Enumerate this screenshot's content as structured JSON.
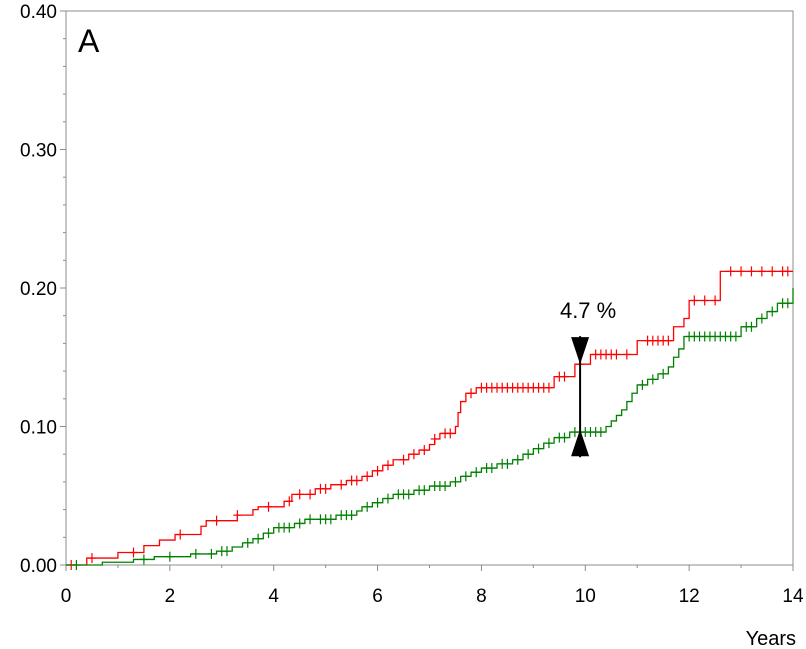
{
  "chart_data": {
    "type": "line",
    "panel_label": "A",
    "xlabel": "Years",
    "ylabel": "",
    "xlim": [
      0,
      14
    ],
    "ylim": [
      0,
      0.4
    ],
    "x_ticks": [
      "0",
      "2",
      "4",
      "6",
      "8",
      "10",
      "12",
      "14"
    ],
    "y_ticks": [
      "0.00",
      "0.10",
      "0.20",
      "0.30",
      "0.40"
    ],
    "grid": false,
    "series": [
      {
        "color": "#ff0000",
        "step_points": [
          [
            0,
            0.0
          ],
          [
            0.4,
            0.005
          ],
          [
            1.0,
            0.009
          ],
          [
            1.5,
            0.014
          ],
          [
            1.8,
            0.018
          ],
          [
            2.1,
            0.022
          ],
          [
            2.6,
            0.028
          ],
          [
            2.7,
            0.032
          ],
          [
            3.3,
            0.036
          ],
          [
            3.6,
            0.04
          ],
          [
            3.7,
            0.042
          ],
          [
            4.2,
            0.046
          ],
          [
            4.35,
            0.051
          ],
          [
            4.8,
            0.055
          ],
          [
            5.1,
            0.058
          ],
          [
            5.4,
            0.061
          ],
          [
            5.7,
            0.064
          ],
          [
            5.9,
            0.068
          ],
          [
            6.1,
            0.072
          ],
          [
            6.3,
            0.076
          ],
          [
            6.6,
            0.08
          ],
          [
            6.8,
            0.083
          ],
          [
            7.0,
            0.087
          ],
          [
            7.1,
            0.091
          ],
          [
            7.2,
            0.095
          ],
          [
            7.5,
            0.1
          ],
          [
            7.55,
            0.11
          ],
          [
            7.6,
            0.118
          ],
          [
            7.7,
            0.124
          ],
          [
            7.9,
            0.128
          ],
          [
            9.4,
            0.136
          ],
          [
            9.8,
            0.145
          ],
          [
            10.1,
            0.152
          ],
          [
            11.0,
            0.162
          ],
          [
            11.7,
            0.172
          ],
          [
            11.9,
            0.178
          ],
          [
            12.0,
            0.191
          ],
          [
            12.6,
            0.212
          ],
          [
            14.0,
            0.212
          ]
        ],
        "censor_x": [
          0.1,
          0.5,
          1.3,
          2.2,
          2.9,
          3.3,
          3.9,
          4.3,
          4.5,
          4.7,
          4.9,
          5.0,
          5.3,
          5.5,
          5.6,
          5.8,
          6.0,
          6.2,
          6.5,
          6.7,
          6.9,
          7.1,
          7.3,
          7.4,
          7.8,
          8.0,
          8.1,
          8.2,
          8.3,
          8.4,
          8.5,
          8.6,
          8.7,
          8.8,
          8.9,
          9.0,
          9.1,
          9.2,
          9.3,
          9.5,
          9.6,
          9.9,
          10.2,
          10.3,
          10.4,
          10.5,
          10.6,
          10.8,
          11.2,
          11.3,
          11.4,
          11.5,
          11.6,
          12.1,
          12.3,
          12.5,
          12.8,
          13.0,
          13.2,
          13.4,
          13.6,
          13.8,
          13.9
        ]
      },
      {
        "color": "#008000",
        "step_points": [
          [
            0,
            0.0
          ],
          [
            0.7,
            0.002
          ],
          [
            1.3,
            0.004
          ],
          [
            1.7,
            0.006
          ],
          [
            2.4,
            0.008
          ],
          [
            2.9,
            0.01
          ],
          [
            3.2,
            0.013
          ],
          [
            3.4,
            0.016
          ],
          [
            3.6,
            0.019
          ],
          [
            3.8,
            0.023
          ],
          [
            4.0,
            0.027
          ],
          [
            4.4,
            0.03
          ],
          [
            4.6,
            0.033
          ],
          [
            5.2,
            0.036
          ],
          [
            5.6,
            0.039
          ],
          [
            5.7,
            0.042
          ],
          [
            5.9,
            0.045
          ],
          [
            6.1,
            0.048
          ],
          [
            6.3,
            0.051
          ],
          [
            6.7,
            0.054
          ],
          [
            7.0,
            0.057
          ],
          [
            7.4,
            0.06
          ],
          [
            7.6,
            0.064
          ],
          [
            7.8,
            0.067
          ],
          [
            8.0,
            0.07
          ],
          [
            8.3,
            0.073
          ],
          [
            8.6,
            0.076
          ],
          [
            8.8,
            0.08
          ],
          [
            9.0,
            0.084
          ],
          [
            9.2,
            0.088
          ],
          [
            9.4,
            0.092
          ],
          [
            9.7,
            0.096
          ],
          [
            10.4,
            0.1
          ],
          [
            10.5,
            0.104
          ],
          [
            10.6,
            0.108
          ],
          [
            10.7,
            0.112
          ],
          [
            10.8,
            0.118
          ],
          [
            10.9,
            0.124
          ],
          [
            11.0,
            0.13
          ],
          [
            11.2,
            0.134
          ],
          [
            11.4,
            0.138
          ],
          [
            11.6,
            0.143
          ],
          [
            11.7,
            0.15
          ],
          [
            11.8,
            0.156
          ],
          [
            11.9,
            0.165
          ],
          [
            13.0,
            0.172
          ],
          [
            13.3,
            0.178
          ],
          [
            13.5,
            0.183
          ],
          [
            13.7,
            0.189
          ],
          [
            14.0,
            0.2
          ]
        ],
        "censor_x": [
          0.2,
          1.5,
          2.0,
          2.5,
          2.8,
          3.0,
          3.1,
          3.5,
          3.7,
          3.9,
          4.1,
          4.2,
          4.3,
          4.5,
          4.7,
          4.9,
          5.0,
          5.1,
          5.3,
          5.4,
          5.5,
          5.8,
          6.0,
          6.2,
          6.4,
          6.5,
          6.6,
          6.8,
          6.9,
          7.1,
          7.2,
          7.3,
          7.5,
          7.7,
          7.9,
          8.1,
          8.2,
          8.4,
          8.5,
          8.7,
          8.9,
          9.1,
          9.3,
          9.5,
          9.6,
          9.8,
          9.9,
          10.0,
          10.1,
          10.2,
          10.3,
          11.1,
          11.3,
          11.5,
          12.0,
          12.1,
          12.2,
          12.3,
          12.4,
          12.5,
          12.6,
          12.7,
          12.8,
          12.9,
          13.1,
          13.2,
          13.4,
          13.6,
          13.8,
          13.9
        ]
      }
    ],
    "annotation": {
      "text": "4.7 %",
      "x": 9.9,
      "y_upper": 0.145,
      "y_lower": 0.098
    }
  }
}
